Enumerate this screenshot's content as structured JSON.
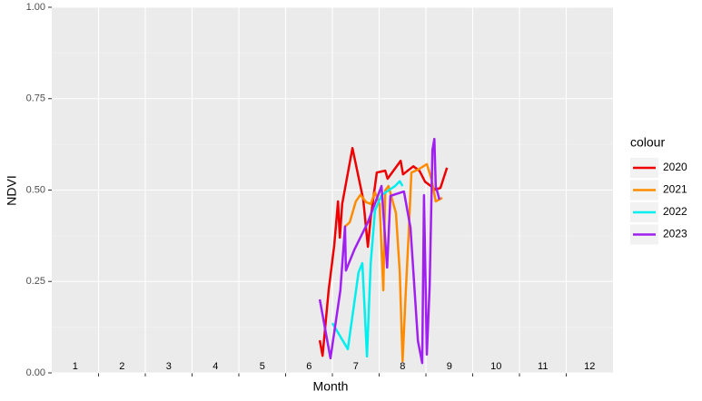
{
  "chart_data": {
    "type": "line",
    "x_label": "Month",
    "y_label": "NDVI",
    "legend_title": "colour",
    "legend_position": "right",
    "xlim": [
      0.5,
      12.5
    ],
    "xticks": [
      1,
      2,
      3,
      4,
      5,
      6,
      7,
      8,
      9,
      10,
      11,
      12
    ],
    "x_minor_ticks": [
      1.5,
      2.5,
      3.5,
      4.5,
      5.5,
      6.5,
      7.5,
      8.5,
      9.5,
      10.5,
      11.5
    ],
    "ylim": [
      0,
      1
    ],
    "yticks": [
      {
        "value": 0,
        "label": "0.00"
      },
      {
        "value": 0.25,
        "label": "0.25"
      },
      {
        "value": 0.5,
        "label": "0.50"
      },
      {
        "value": 0.75,
        "label": "0.75"
      },
      {
        "value": 1,
        "label": "1.00"
      }
    ],
    "y_minor_ticks": [
      0.125,
      0.375,
      0.625,
      0.875
    ],
    "grid": true,
    "series": [
      {
        "name": "2020",
        "color": "#ee0000",
        "x": [
          6.23,
          6.29,
          6.42,
          6.54,
          6.62,
          6.66,
          6.71,
          6.93,
          7.16,
          7.26,
          7.32,
          7.41,
          7.45,
          7.63,
          7.68,
          7.96,
          8.01,
          8.23,
          8.36,
          8.48,
          8.71,
          8.81,
          8.95
        ],
        "values": [
          0.089,
          0.047,
          0.226,
          0.35,
          0.469,
          0.37,
          0.462,
          0.615,
          0.474,
          0.345,
          0.424,
          0.511,
          0.548,
          0.553,
          0.531,
          0.58,
          0.543,
          0.565,
          0.553,
          0.523,
          0.501,
          0.506,
          0.561
        ]
      },
      {
        "name": "2021",
        "color": "#ff8c00",
        "x": [
          6.77,
          6.87,
          7.0,
          7.1,
          7.22,
          7.32,
          7.41,
          7.51,
          7.59,
          7.63,
          7.7,
          7.86,
          7.94,
          8.0,
          8.07,
          8.13,
          8.19,
          8.36,
          8.52,
          8.62,
          8.71,
          8.85
        ],
        "values": [
          0.4,
          0.412,
          0.469,
          0.487,
          0.467,
          0.462,
          0.494,
          0.462,
          0.226,
          0.499,
          0.511,
          0.437,
          0.275,
          0.032,
          0.226,
          0.375,
          0.548,
          0.558,
          0.571,
          0.529,
          0.469,
          0.479
        ]
      },
      {
        "name": "2022",
        "color": "#00eeee",
        "x": [
          6.5,
          6.83,
          7.06,
          7.14,
          7.24,
          7.32,
          7.41,
          7.55,
          7.7,
          7.84,
          7.94,
          8.0
        ],
        "values": [
          0.136,
          0.065,
          0.275,
          0.3,
          0.045,
          0.3,
          0.444,
          0.486,
          0.499,
          0.511,
          0.524,
          0.511
        ]
      },
      {
        "name": "2023",
        "color": "#a020f0",
        "x": [
          6.23,
          6.46,
          6.67,
          6.77,
          6.79,
          6.97,
          7.26,
          7.55,
          7.67,
          7.74,
          8.03,
          8.17,
          8.33,
          8.42,
          8.46,
          8.52,
          8.58,
          8.64,
          8.68,
          8.71,
          8.79
        ],
        "values": [
          0.201,
          0.04,
          0.226,
          0.4,
          0.28,
          0.337,
          0.412,
          0.511,
          0.288,
          0.484,
          0.496,
          0.397,
          0.087,
          0.027,
          0.486,
          0.05,
          0.236,
          0.61,
          0.64,
          0.511,
          0.474
        ]
      }
    ]
  }
}
